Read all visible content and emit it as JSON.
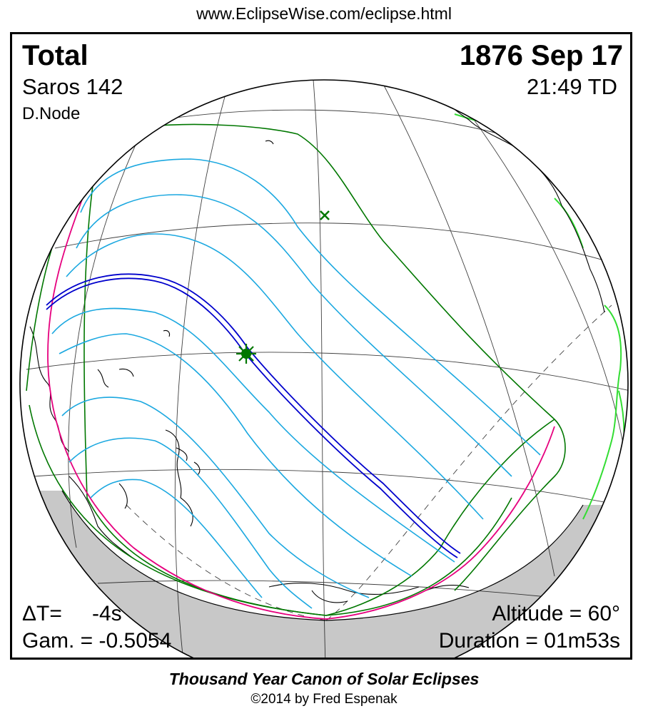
{
  "header": {
    "url": "www.EclipseWise.com/eclipse.html"
  },
  "eclipse": {
    "type": "Total",
    "date": "1876 Sep 17",
    "saros": "Saros 142",
    "time": "21:49 TD",
    "node": "D.Node",
    "delta_t_label": "ΔT=",
    "delta_t_value": "-4s",
    "gamma": "Gam. = -0.5054",
    "altitude": "Altitude = 60°",
    "duration": "Duration = 01m53s"
  },
  "footer": {
    "canon": "Thousand Year Canon of Solar Eclipses",
    "copyright": "©2014 by Fred Espenak"
  },
  "colors": {
    "umbral_path": "#0000cc",
    "penumbra_lines": "#1ba8e0",
    "penumbral_limits": "#007700",
    "rise_set_curve": "#e6007e",
    "coastlines_dark": "#000000",
    "coastlines_green": "#33dd33",
    "night_shade": "#c8c8c8"
  },
  "markers": {
    "greatest_eclipse": "asterisk-icon",
    "subsolar_point": "x-mark-icon"
  }
}
